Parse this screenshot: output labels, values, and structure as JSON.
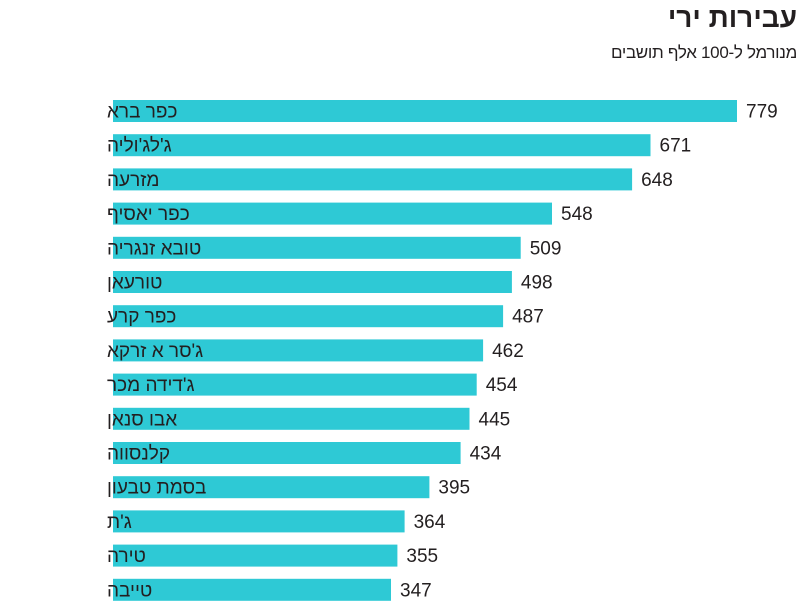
{
  "chart_data": {
    "type": "bar",
    "orientation": "horizontal",
    "title": "עבירות ירי",
    "subtitle": "מנורמל ל-100 אלף תושבים",
    "categories": [
      "כפר ברא",
      "ג'לג'וליה",
      "מזרעה",
      "כפר יאסיף",
      "טובא זנגריה",
      "טורעאן",
      "כפר קרע",
      "ג'סר א זרקא",
      "ג'דידה מכר",
      "אבו סנאן",
      "קלנסווה",
      "בסמת טבעון",
      "ג'ת",
      "טירה",
      "טייבה"
    ],
    "values": [
      779,
      671,
      648,
      548,
      509,
      498,
      487,
      462,
      454,
      445,
      434,
      395,
      364,
      355,
      347
    ],
    "bar_color": "#2ec9d5",
    "xlim": [
      0,
      779
    ],
    "grid": false,
    "legend": "none"
  }
}
